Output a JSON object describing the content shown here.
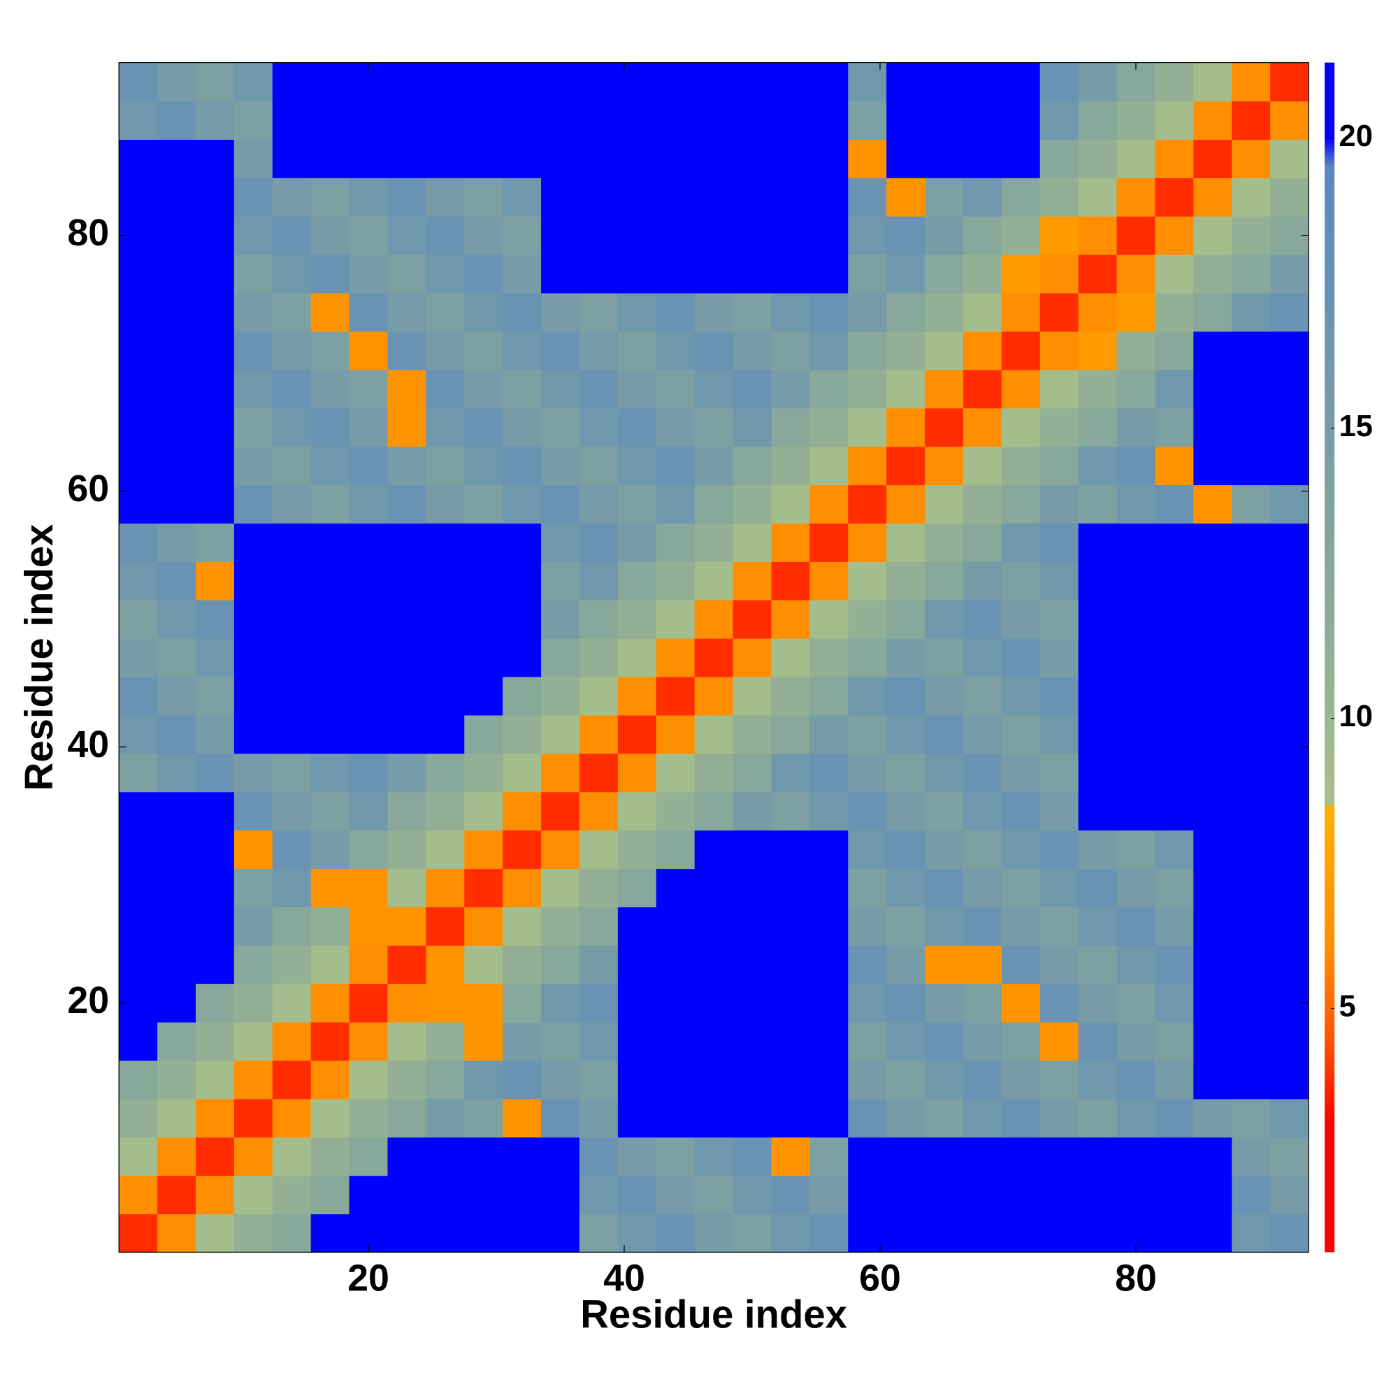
{
  "chart_data": {
    "type": "heatmap",
    "xlabel": "Residue index",
    "ylabel": "Residue index",
    "x": [
      2,
      5,
      8,
      11,
      14,
      17,
      20,
      23,
      26,
      29,
      32,
      35,
      38,
      41,
      44,
      47,
      50,
      53,
      56,
      59,
      62,
      65,
      68,
      71,
      74,
      77,
      80,
      83,
      86,
      89,
      92
    ],
    "y": [
      2,
      5,
      8,
      11,
      14,
      17,
      20,
      23,
      26,
      29,
      32,
      35,
      38,
      41,
      44,
      47,
      50,
      53,
      56,
      59,
      62,
      65,
      68,
      71,
      74,
      77,
      80,
      83,
      86,
      89,
      92
    ],
    "xlim": [
      0.5,
      93.5
    ],
    "ylim": [
      0.5,
      93.5
    ],
    "xticks": [
      20,
      40,
      60,
      80
    ],
    "yticks": [
      20,
      40,
      60,
      80
    ],
    "zlim": [
      0.8,
      21.3
    ],
    "zticks": [
      5,
      10,
      15,
      20
    ],
    "colorscale": [
      [
        0.8,
        "#ff0000"
      ],
      [
        3,
        "#ff0000"
      ],
      [
        4.5,
        "#ff5500"
      ],
      [
        6,
        "#ff8c00"
      ],
      [
        8.5,
        "#ffb000"
      ],
      [
        8.5,
        "#a8c08a"
      ],
      [
        12,
        "#8aaa98"
      ],
      [
        19.5,
        "#5a88c0"
      ],
      [
        20,
        "#0000ff"
      ],
      [
        21.3,
        "#0000ff"
      ]
    ],
    "z": [
      [
        3.8,
        6.2,
        9,
        11,
        12.5,
        22,
        22,
        22,
        22,
        22,
        22,
        22,
        14,
        16,
        17,
        15,
        14,
        16,
        17,
        22,
        22,
        22,
        22,
        22,
        22,
        22,
        22,
        22,
        22,
        16,
        17
      ],
      [
        6.2,
        3.8,
        6.2,
        9,
        11,
        12.5,
        22,
        22,
        22,
        22,
        22,
        22,
        16,
        17,
        15,
        14,
        16,
        17,
        15,
        22,
        22,
        22,
        22,
        22,
        22,
        22,
        22,
        22,
        22,
        17,
        15
      ],
      [
        9,
        6.2,
        3.8,
        6.2,
        9,
        11,
        12.5,
        22,
        22,
        22,
        22,
        22,
        17,
        15,
        14,
        16,
        17,
        6.5,
        14,
        22,
        22,
        22,
        22,
        22,
        22,
        22,
        22,
        22,
        22,
        15,
        14
      ],
      [
        11,
        9,
        6.2,
        3.8,
        6.2,
        9,
        11,
        12.5,
        15,
        14,
        6.5,
        17,
        15,
        22,
        22,
        22,
        22,
        22,
        22,
        17,
        15,
        14,
        16,
        17,
        15,
        14,
        16,
        17,
        15,
        14,
        16
      ],
      [
        12.5,
        11,
        9,
        6.2,
        3.8,
        6.2,
        9,
        11,
        12.5,
        16,
        17,
        15,
        14,
        22,
        22,
        22,
        22,
        22,
        22,
        15,
        14,
        16,
        17,
        15,
        14,
        16,
        17,
        15,
        22,
        22,
        22
      ],
      [
        22,
        12.5,
        11,
        9,
        6.2,
        3.8,
        6.2,
        9,
        11,
        6.5,
        15,
        14,
        16,
        22,
        22,
        22,
        22,
        22,
        22,
        14,
        16,
        17,
        15,
        14,
        6.5,
        17,
        15,
        14,
        22,
        22,
        22
      ],
      [
        22,
        22,
        12.5,
        11,
        9,
        6.2,
        3.8,
        6.2,
        6.5,
        6.5,
        12.5,
        16,
        17,
        22,
        22,
        22,
        22,
        22,
        22,
        16,
        17,
        15,
        14,
        6.5,
        17,
        15,
        14,
        16,
        22,
        22,
        22
      ],
      [
        22,
        22,
        22,
        12.5,
        11,
        9,
        6.2,
        3.8,
        6.5,
        9,
        11,
        12.5,
        15,
        22,
        22,
        22,
        22,
        22,
        22,
        17,
        15,
        6.5,
        6.5,
        17,
        15,
        14,
        16,
        17,
        22,
        22,
        22
      ],
      [
        22,
        22,
        22,
        15,
        12.5,
        11,
        6.5,
        6.5,
        3.8,
        6.2,
        9,
        11,
        12.5,
        22,
        22,
        22,
        22,
        22,
        22,
        15,
        14,
        16,
        17,
        15,
        14,
        16,
        17,
        15,
        22,
        22,
        22
      ],
      [
        22,
        22,
        22,
        14,
        16,
        6.5,
        6.5,
        9,
        6.2,
        3.8,
        6.2,
        9,
        11,
        12.5,
        22,
        22,
        22,
        22,
        22,
        14,
        16,
        17,
        15,
        14,
        16,
        17,
        15,
        14,
        22,
        22,
        22
      ],
      [
        22,
        22,
        22,
        6.5,
        17,
        15,
        12.5,
        11,
        9,
        6.2,
        3.8,
        6.2,
        9,
        11,
        12.5,
        22,
        22,
        22,
        22,
        16,
        17,
        15,
        14,
        16,
        17,
        15,
        14,
        16,
        22,
        22,
        22
      ],
      [
        22,
        22,
        22,
        17,
        15,
        14,
        16,
        12.5,
        11,
        9,
        6.2,
        3.8,
        6.2,
        9,
        11,
        12.5,
        15,
        14,
        16,
        17,
        15,
        14,
        16,
        17,
        15,
        22,
        22,
        22,
        22,
        22,
        22
      ],
      [
        14,
        16,
        17,
        15,
        14,
        16,
        17,
        15,
        12.5,
        11,
        9,
        6.2,
        3.8,
        6.2,
        9,
        11,
        12.5,
        16,
        17,
        15,
        14,
        16,
        17,
        15,
        14,
        22,
        22,
        22,
        22,
        22,
        22
      ],
      [
        16,
        17,
        15,
        22,
        22,
        22,
        22,
        22,
        22,
        12.5,
        11,
        9,
        6.2,
        3.8,
        6.2,
        9,
        11,
        12.5,
        15,
        14,
        16,
        17,
        15,
        14,
        16,
        22,
        22,
        22,
        22,
        22,
        22
      ],
      [
        17,
        15,
        14,
        22,
        22,
        22,
        22,
        22,
        22,
        22,
        12.5,
        11,
        9,
        6.2,
        3.8,
        6.2,
        9,
        11,
        12.5,
        16,
        17,
        15,
        14,
        16,
        17,
        22,
        22,
        22,
        22,
        22,
        22
      ],
      [
        15,
        14,
        16,
        22,
        22,
        22,
        22,
        22,
        22,
        22,
        22,
        12.5,
        11,
        9,
        6.2,
        3.8,
        6.2,
        9,
        11,
        12.5,
        15,
        14,
        16,
        17,
        15,
        22,
        22,
        22,
        22,
        22,
        22
      ],
      [
        14,
        16,
        17,
        22,
        22,
        22,
        22,
        22,
        22,
        22,
        22,
        15,
        12.5,
        11,
        9,
        6.2,
        3.8,
        6.2,
        9,
        11,
        12.5,
        16,
        17,
        15,
        14,
        22,
        22,
        22,
        22,
        22,
        22
      ],
      [
        16,
        17,
        6.5,
        22,
        22,
        22,
        22,
        22,
        22,
        22,
        22,
        14,
        16,
        12.5,
        11,
        9,
        6.2,
        3.8,
        6.2,
        9,
        11,
        12.5,
        15,
        14,
        16,
        22,
        22,
        22,
        22,
        22,
        22
      ],
      [
        17,
        15,
        14,
        22,
        22,
        22,
        22,
        22,
        22,
        22,
        22,
        16,
        17,
        15,
        12.5,
        11,
        9,
        6.2,
        3.8,
        6.2,
        9,
        11,
        12.5,
        16,
        17,
        22,
        22,
        22,
        22,
        22,
        22
      ],
      [
        22,
        22,
        22,
        17,
        15,
        14,
        16,
        17,
        15,
        14,
        16,
        17,
        15,
        14,
        16,
        12.5,
        11,
        9,
        6.2,
        3.8,
        6.2,
        9,
        11,
        12.5,
        15,
        14,
        16,
        17,
        6.5,
        14,
        16
      ],
      [
        22,
        22,
        22,
        15,
        14,
        16,
        17,
        15,
        14,
        16,
        17,
        15,
        14,
        16,
        17,
        15,
        12.5,
        11,
        9,
        6.2,
        3.8,
        6.2,
        9,
        11,
        12.5,
        16,
        17,
        6.5,
        22,
        22,
        22
      ],
      [
        22,
        22,
        22,
        14,
        16,
        17,
        15,
        6.5,
        16,
        17,
        15,
        14,
        16,
        17,
        15,
        14,
        16,
        12.5,
        11,
        9,
        6.2,
        3.8,
        6.2,
        9,
        11,
        12.5,
        15,
        14,
        22,
        22,
        22
      ],
      [
        22,
        22,
        22,
        16,
        17,
        15,
        14,
        6.5,
        17,
        15,
        14,
        16,
        17,
        15,
        14,
        16,
        17,
        15,
        12.5,
        11,
        9,
        6.2,
        3.8,
        6.2,
        9,
        11,
        12.5,
        16,
        22,
        22,
        22
      ],
      [
        22,
        22,
        22,
        17,
        15,
        14,
        6.5,
        17,
        15,
        14,
        16,
        17,
        15,
        14,
        16,
        17,
        15,
        14,
        16,
        12.5,
        11,
        9,
        6.2,
        3.8,
        6.2,
        7,
        11,
        12.5,
        22,
        22,
        22
      ],
      [
        22,
        22,
        22,
        15,
        14,
        6.5,
        17,
        15,
        14,
        16,
        17,
        15,
        14,
        16,
        17,
        15,
        14,
        16,
        17,
        15,
        12.5,
        11,
        9,
        6.2,
        3.8,
        6.2,
        7,
        11,
        12.5,
        16,
        17
      ],
      [
        22,
        22,
        22,
        14,
        16,
        17,
        15,
        14,
        16,
        17,
        15,
        22,
        22,
        22,
        22,
        22,
        22,
        22,
        22,
        14,
        16,
        12.5,
        11,
        7,
        6.2,
        3.8,
        6.2,
        9,
        11,
        12.5,
        15
      ],
      [
        22,
        22,
        22,
        16,
        17,
        15,
        14,
        16,
        17,
        15,
        14,
        22,
        22,
        22,
        22,
        22,
        22,
        22,
        22,
        16,
        17,
        15,
        12.5,
        11,
        7,
        6.2,
        3.8,
        6.2,
        9,
        11,
        12.5
      ],
      [
        22,
        22,
        22,
        17,
        15,
        14,
        16,
        17,
        15,
        14,
        16,
        22,
        22,
        22,
        22,
        22,
        22,
        22,
        22,
        17,
        6.5,
        14,
        16,
        12.5,
        11,
        9,
        6.2,
        3.8,
        6.2,
        9,
        11
      ],
      [
        22,
        22,
        22,
        15,
        22,
        22,
        22,
        22,
        22,
        22,
        22,
        22,
        22,
        22,
        22,
        22,
        22,
        22,
        22,
        6.5,
        22,
        22,
        22,
        22,
        12.5,
        11,
        9,
        6.2,
        3.8,
        6.2,
        9
      ],
      [
        16,
        17,
        15,
        14,
        22,
        22,
        22,
        22,
        22,
        22,
        22,
        22,
        22,
        22,
        22,
        22,
        22,
        22,
        22,
        14,
        22,
        22,
        22,
        22,
        16,
        12.5,
        11,
        9,
        6.2,
        3.8,
        6.2
      ],
      [
        17,
        15,
        14,
        16,
        22,
        22,
        22,
        22,
        22,
        22,
        22,
        22,
        22,
        22,
        22,
        22,
        22,
        22,
        22,
        16,
        22,
        22,
        22,
        22,
        17,
        15,
        12.5,
        11,
        9,
        6.2,
        3.8
      ]
    ]
  }
}
